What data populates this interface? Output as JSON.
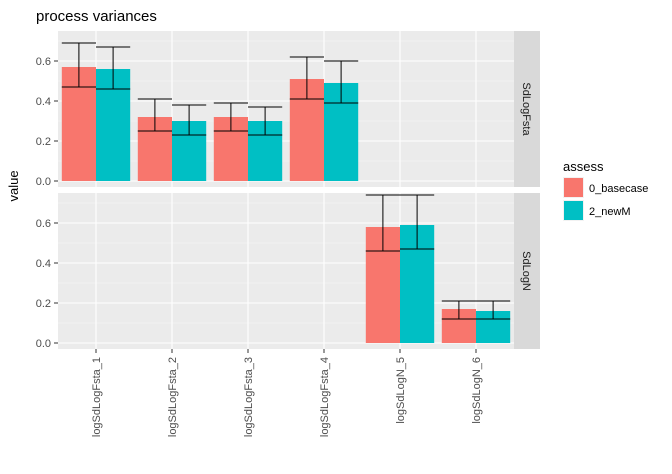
{
  "chart_data": {
    "type": "bar",
    "title": "process variances",
    "ylabel": "value",
    "xlabel": "",
    "categories": [
      "logSdLogFsta_1",
      "logSdLogFsta_2",
      "logSdLogFsta_3",
      "logSdLogFsta_4",
      "logSdLogN_5",
      "logSdLogN_6"
    ],
    "legend": {
      "title": "assess",
      "position": "right",
      "entries": [
        {
          "name": "0_basecase",
          "color": "#F8766D"
        },
        {
          "name": "2_newM",
          "color": "#00BFC4"
        }
      ]
    },
    "yticks": [
      "0.0",
      "0.2",
      "0.4",
      "0.6"
    ],
    "ylim": [
      -0.03,
      0.75
    ],
    "grid": true,
    "panels": [
      {
        "strip": "SdLogFsta",
        "series": [
          {
            "name": "0_basecase",
            "values": [
              0.57,
              0.32,
              0.32,
              0.51,
              null,
              null
            ],
            "lower": [
              0.47,
              0.25,
              0.25,
              0.41,
              null,
              null
            ],
            "upper": [
              0.69,
              0.41,
              0.39,
              0.62,
              null,
              null
            ]
          },
          {
            "name": "2_newM",
            "values": [
              0.56,
              0.3,
              0.3,
              0.49,
              null,
              null
            ],
            "lower": [
              0.46,
              0.23,
              0.23,
              0.39,
              null,
              null
            ],
            "upper": [
              0.67,
              0.38,
              0.37,
              0.6,
              null,
              null
            ]
          }
        ]
      },
      {
        "strip": "SdLogN",
        "series": [
          {
            "name": "0_basecase",
            "values": [
              null,
              null,
              null,
              null,
              0.58,
              0.17
            ],
            "lower": [
              null,
              null,
              null,
              null,
              0.46,
              0.12
            ],
            "upper": [
              null,
              null,
              null,
              null,
              0.74,
              0.21
            ]
          },
          {
            "name": "2_newM",
            "values": [
              null,
              null,
              null,
              null,
              0.59,
              0.16
            ],
            "lower": [
              null,
              null,
              null,
              null,
              0.47,
              0.12
            ],
            "upper": [
              null,
              null,
              null,
              null,
              0.74,
              0.21
            ]
          }
        ]
      }
    ]
  }
}
